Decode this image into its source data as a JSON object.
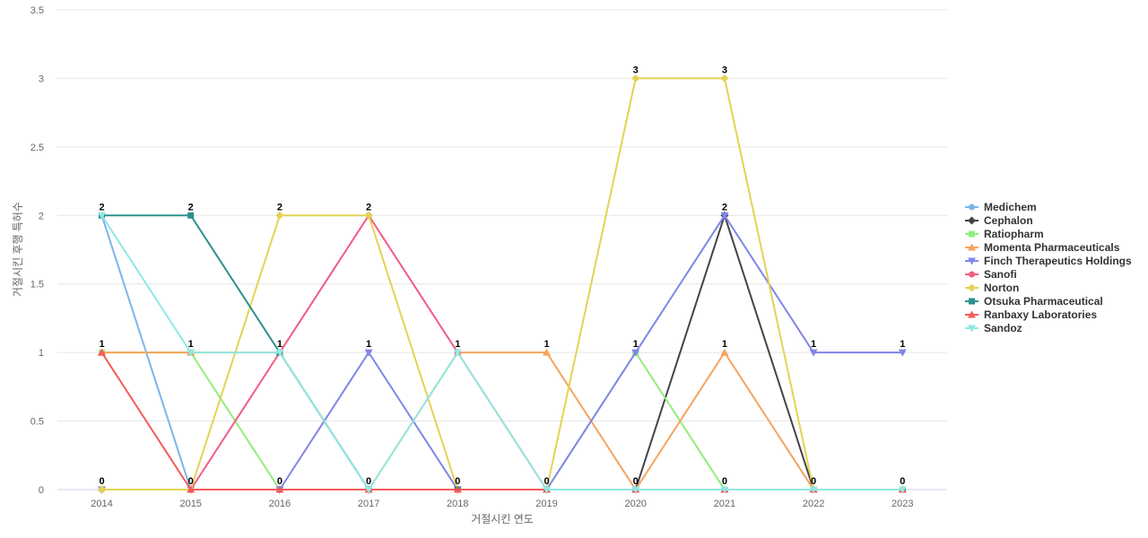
{
  "chart_data": {
    "type": "line",
    "xlabel": "거절시킨 연도",
    "ylabel": "거절시킨 후행 특허수",
    "categories": [
      "2014",
      "2015",
      "2016",
      "2017",
      "2018",
      "2019",
      "2020",
      "2021",
      "2022",
      "2023"
    ],
    "ylim": [
      0,
      3.5
    ],
    "yticks": [
      "0",
      "0.5",
      "1",
      "1.5",
      "2",
      "2.5",
      "3",
      "3.5"
    ],
    "grid": true,
    "legend_position": "right",
    "data_labels": [
      {
        "year": "2014",
        "values": [
          "2",
          "1",
          "0"
        ]
      },
      {
        "year": "2015",
        "values": [
          "2",
          "1",
          "0"
        ]
      },
      {
        "year": "2016",
        "values": [
          "2",
          "1",
          "0"
        ]
      },
      {
        "year": "2017",
        "values": [
          "2",
          "1",
          "0"
        ]
      },
      {
        "year": "2018",
        "values": [
          "1",
          "0"
        ]
      },
      {
        "year": "2019",
        "values": [
          "1",
          "0"
        ]
      },
      {
        "year": "2020",
        "values": [
          "3",
          "1",
          "0"
        ]
      },
      {
        "year": "2021",
        "values": [
          "3",
          "2",
          "1",
          "0"
        ]
      },
      {
        "year": "2022",
        "values": [
          "1",
          "0"
        ]
      },
      {
        "year": "2023",
        "values": [
          "1",
          "0"
        ]
      }
    ],
    "series": [
      {
        "name": "Medichem",
        "color": "#7cb5ec",
        "marker": "circle",
        "values": [
          2,
          0,
          0,
          0,
          0,
          0,
          0,
          0,
          0,
          0
        ]
      },
      {
        "name": "Cephalon",
        "color": "#434348",
        "marker": "diamond",
        "values": [
          0,
          0,
          0,
          0,
          0,
          0,
          0,
          2,
          0,
          0
        ]
      },
      {
        "name": "Ratiopharm",
        "color": "#90ed7d",
        "marker": "square",
        "values": [
          1,
          1,
          0,
          0,
          0,
          0,
          1,
          0,
          0,
          0
        ]
      },
      {
        "name": "Momenta Pharmaceuticals",
        "color": "#f7a35c",
        "marker": "triangle",
        "values": [
          1,
          1,
          1,
          0,
          1,
          1,
          0,
          1,
          0,
          0
        ]
      },
      {
        "name": "Finch Therapeutics Holdings",
        "color": "#8085e9",
        "marker": "triangle-down",
        "values": [
          0,
          0,
          0,
          1,
          0,
          0,
          1,
          2,
          1,
          1
        ]
      },
      {
        "name": "Sanofi",
        "color": "#f15c80",
        "marker": "circle",
        "values": [
          0,
          0,
          1,
          2,
          1,
          0,
          0,
          0,
          0,
          0
        ]
      },
      {
        "name": "Norton",
        "color": "#e4d354",
        "marker": "diamond",
        "values": [
          0,
          0,
          2,
          2,
          0,
          0,
          3,
          3,
          0,
          0
        ]
      },
      {
        "name": "Otsuka Pharmaceutical",
        "color": "#2b908f",
        "marker": "square",
        "values": [
          2,
          2,
          1,
          0,
          0,
          0,
          0,
          0,
          0,
          0
        ]
      },
      {
        "name": "Ranbaxy Laboratories",
        "color": "#f45b5b",
        "marker": "triangle",
        "values": [
          1,
          0,
          0,
          0,
          0,
          0,
          0,
          0,
          0,
          0
        ]
      },
      {
        "name": "Sandoz",
        "color": "#91e8e1",
        "marker": "triangle-down",
        "values": [
          2,
          1,
          1,
          0,
          1,
          0,
          0,
          0,
          0,
          0
        ]
      }
    ]
  }
}
